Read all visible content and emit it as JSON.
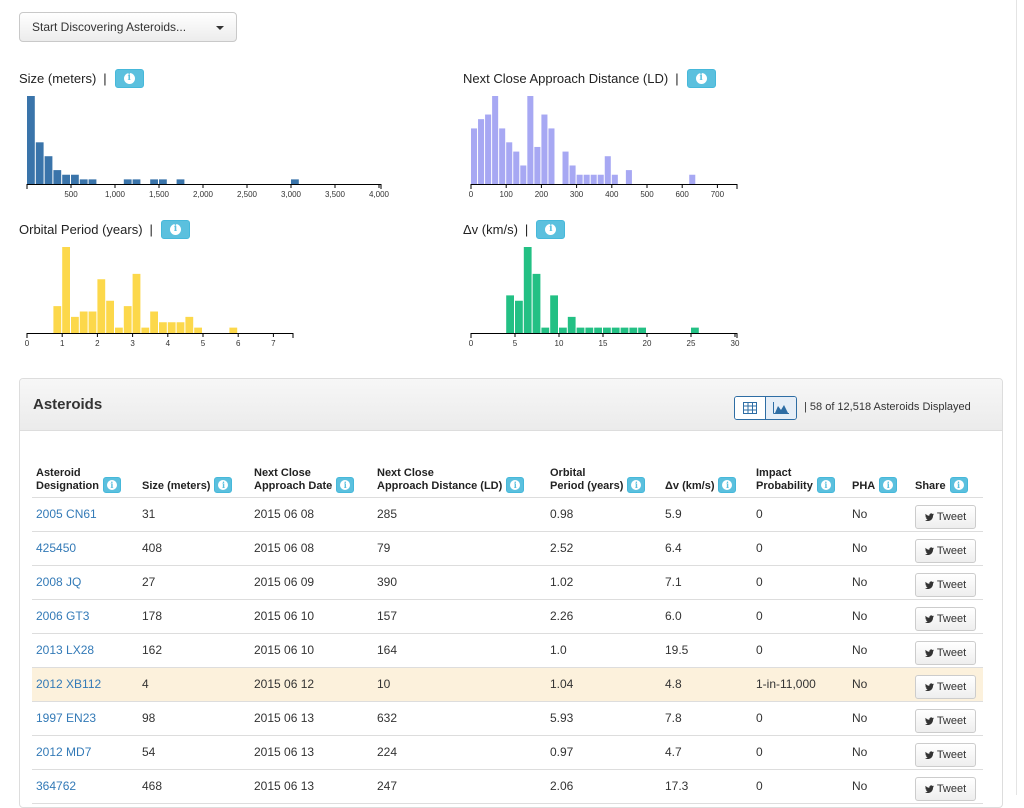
{
  "dropdown": {
    "label": "Start Discovering Asteroids..."
  },
  "charts": [
    {
      "title": "Size (meters)",
      "color": "#3a74aa",
      "xmin": 0,
      "xmax": 4000,
      "ticks": [
        "500",
        "1,000",
        "1,500",
        "2,000",
        "2,500",
        "3,000",
        "3,500",
        "4,000"
      ],
      "tick_values": [
        500,
        1000,
        1500,
        2000,
        2500,
        3000,
        3500,
        4000
      ],
      "bin_width": 100,
      "bins": [
        {
          "x": 0,
          "y": 19
        },
        {
          "x": 100,
          "y": 9
        },
        {
          "x": 200,
          "y": 6
        },
        {
          "x": 300,
          "y": 3
        },
        {
          "x": 400,
          "y": 2
        },
        {
          "x": 500,
          "y": 2
        },
        {
          "x": 600,
          "y": 1
        },
        {
          "x": 700,
          "y": 1
        },
        {
          "x": 1100,
          "y": 1
        },
        {
          "x": 1200,
          "y": 1
        },
        {
          "x": 1400,
          "y": 1
        },
        {
          "x": 1500,
          "y": 1
        },
        {
          "x": 1700,
          "y": 1
        },
        {
          "x": 3000,
          "y": 1
        }
      ],
      "ymax": 19
    },
    {
      "title": "Next Close Approach Distance (LD)",
      "color": "#a7a8f3",
      "xmin": 0,
      "xmax": 750,
      "ticks": [
        "0",
        "100",
        "200",
        "300",
        "400",
        "500",
        "600",
        "700"
      ],
      "tick_values": [
        0,
        100,
        200,
        300,
        400,
        500,
        600,
        700
      ],
      "bin_width": 20,
      "bins": [
        {
          "x": 0,
          "y": 12
        },
        {
          "x": 20,
          "y": 14
        },
        {
          "x": 40,
          "y": 15
        },
        {
          "x": 60,
          "y": 19
        },
        {
          "x": 80,
          "y": 12
        },
        {
          "x": 100,
          "y": 9
        },
        {
          "x": 120,
          "y": 7
        },
        {
          "x": 140,
          "y": 4
        },
        {
          "x": 160,
          "y": 19
        },
        {
          "x": 180,
          "y": 8
        },
        {
          "x": 200,
          "y": 15
        },
        {
          "x": 220,
          "y": 12
        },
        {
          "x": 260,
          "y": 7
        },
        {
          "x": 280,
          "y": 4
        },
        {
          "x": 300,
          "y": 2
        },
        {
          "x": 320,
          "y": 2
        },
        {
          "x": 340,
          "y": 2
        },
        {
          "x": 360,
          "y": 2
        },
        {
          "x": 380,
          "y": 6
        },
        {
          "x": 400,
          "y": 2
        },
        {
          "x": 440,
          "y": 3
        },
        {
          "x": 620,
          "y": 2
        }
      ],
      "ymax": 19
    },
    {
      "title": "Orbital Period (years)",
      "color": "#fcd84b",
      "xmin": 0,
      "xmax": 7.5,
      "ticks": [
        "0",
        "1",
        "2",
        "3",
        "4",
        "5",
        "6",
        "7"
      ],
      "tick_values": [
        0,
        1,
        2,
        3,
        4,
        5,
        6,
        7
      ],
      "bin_width": 0.25,
      "bins": [
        {
          "x": 0.75,
          "y": 5
        },
        {
          "x": 1.0,
          "y": 16
        },
        {
          "x": 1.25,
          "y": 3
        },
        {
          "x": 1.5,
          "y": 4
        },
        {
          "x": 1.75,
          "y": 4
        },
        {
          "x": 2.0,
          "y": 10
        },
        {
          "x": 2.25,
          "y": 6
        },
        {
          "x": 2.5,
          "y": 1
        },
        {
          "x": 2.75,
          "y": 5
        },
        {
          "x": 3.0,
          "y": 11
        },
        {
          "x": 3.25,
          "y": 1
        },
        {
          "x": 3.5,
          "y": 4
        },
        {
          "x": 3.75,
          "y": 2
        },
        {
          "x": 4.0,
          "y": 2
        },
        {
          "x": 4.25,
          "y": 2
        },
        {
          "x": 4.5,
          "y": 3
        },
        {
          "x": 4.75,
          "y": 1
        },
        {
          "x": 5.75,
          "y": 1
        }
      ],
      "ymax": 16
    },
    {
      "title": "Δv (km/s)",
      "color": "#23c084",
      "xmin": 0,
      "xmax": 30,
      "ticks": [
        "0",
        "5",
        "10",
        "15",
        "20",
        "25",
        "30"
      ],
      "tick_values": [
        0,
        5,
        10,
        15,
        20,
        25,
        30
      ],
      "bin_width": 1,
      "bins": [
        {
          "x": 4,
          "y": 7
        },
        {
          "x": 5,
          "y": 6
        },
        {
          "x": 6,
          "y": 16
        },
        {
          "x": 7,
          "y": 11
        },
        {
          "x": 8,
          "y": 1
        },
        {
          "x": 9,
          "y": 7
        },
        {
          "x": 10,
          "y": 1
        },
        {
          "x": 11,
          "y": 3
        },
        {
          "x": 12,
          "y": 1
        },
        {
          "x": 13,
          "y": 1
        },
        {
          "x": 14,
          "y": 1
        },
        {
          "x": 15,
          "y": 1
        },
        {
          "x": 16,
          "y": 1
        },
        {
          "x": 17,
          "y": 1
        },
        {
          "x": 18,
          "y": 1
        },
        {
          "x": 19,
          "y": 1
        },
        {
          "x": 25,
          "y": 1
        }
      ],
      "ymax": 16
    }
  ],
  "panel": {
    "title": "Asteroids",
    "displayed_text": "| 58 of 12,518 Asteroids Displayed"
  },
  "table": {
    "headers": [
      {
        "line1": "Asteroid",
        "line2": "Designation"
      },
      {
        "line1": "",
        "line2": "Size (meters)"
      },
      {
        "line1": "Next Close",
        "line2": "Approach Date"
      },
      {
        "line1": "Next Close",
        "line2": "Approach Distance (LD)"
      },
      {
        "line1": "Orbital",
        "line2": "Period (years)"
      },
      {
        "line1": "",
        "line2": "Δv (km/s)"
      },
      {
        "line1": "Impact",
        "line2": "Probability"
      },
      {
        "line1": "",
        "line2": "PHA"
      },
      {
        "line1": "",
        "line2": "Share"
      }
    ],
    "tweet_label": "Tweet",
    "rows": [
      {
        "designation": "2005 CN61",
        "size": "31",
        "date": "2015 06 08",
        "distance": "285",
        "period": "0.98",
        "dv": "5.9",
        "impact": "0",
        "pha": "No",
        "highlight": false
      },
      {
        "designation": "425450",
        "size": "408",
        "date": "2015 06 08",
        "distance": "79",
        "period": "2.52",
        "dv": "6.4",
        "impact": "0",
        "pha": "No",
        "highlight": false
      },
      {
        "designation": "2008 JQ",
        "size": "27",
        "date": "2015 06 09",
        "distance": "390",
        "period": "1.02",
        "dv": "7.1",
        "impact": "0",
        "pha": "No",
        "highlight": false
      },
      {
        "designation": "2006 GT3",
        "size": "178",
        "date": "2015 06 10",
        "distance": "157",
        "period": "2.26",
        "dv": "6.0",
        "impact": "0",
        "pha": "No",
        "highlight": false
      },
      {
        "designation": "2013 LX28",
        "size": "162",
        "date": "2015 06 10",
        "distance": "164",
        "period": "1.0",
        "dv": "19.5",
        "impact": "0",
        "pha": "No",
        "highlight": false
      },
      {
        "designation": "2012 XB112",
        "size": "4",
        "date": "2015 06 12",
        "distance": "10",
        "period": "1.04",
        "dv": "4.8",
        "impact": "1-in-11,000",
        "pha": "No",
        "highlight": true
      },
      {
        "designation": "1997 EN23",
        "size": "98",
        "date": "2015 06 13",
        "distance": "632",
        "period": "5.93",
        "dv": "7.8",
        "impact": "0",
        "pha": "No",
        "highlight": false
      },
      {
        "designation": "2012 MD7",
        "size": "54",
        "date": "2015 06 13",
        "distance": "224",
        "period": "0.97",
        "dv": "4.7",
        "impact": "0",
        "pha": "No",
        "highlight": false
      },
      {
        "designation": "364762",
        "size": "468",
        "date": "2015 06 13",
        "distance": "247",
        "period": "2.06",
        "dv": "17.3",
        "impact": "0",
        "pha": "No",
        "highlight": false
      }
    ]
  }
}
